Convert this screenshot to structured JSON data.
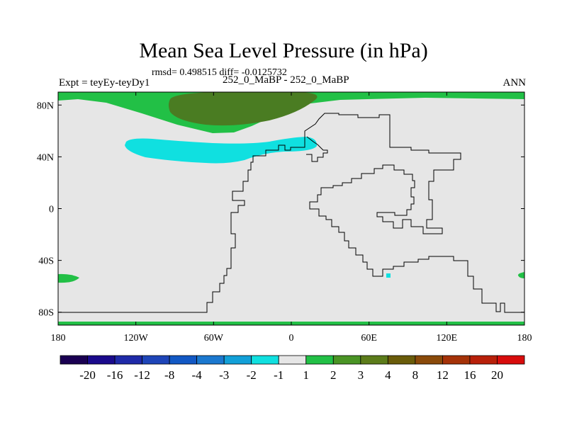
{
  "chart_data": {
    "type": "map-contour",
    "title": "Mean Sea Level Pressure (in hPa)",
    "stats": "rmsd= 0.498515 diff= -0.0125732",
    "left_label": "Expt = teyEy-teyDy1",
    "center_label": "252_0_MaBP - 252_0_MaBP",
    "right_label": "ANN",
    "lon_range": [
      -180,
      180
    ],
    "lat_range": [
      -90,
      90
    ],
    "lon_ticks": [
      {
        "value": -180,
        "label": "180"
      },
      {
        "value": -120,
        "label": "120W"
      },
      {
        "value": -60,
        "label": "60W"
      },
      {
        "value": 0,
        "label": "0"
      },
      {
        "value": 60,
        "label": "60E"
      },
      {
        "value": 120,
        "label": "120E"
      },
      {
        "value": 180,
        "label": "180"
      }
    ],
    "lat_ticks": [
      {
        "value": 80,
        "label": "80N"
      },
      {
        "value": 40,
        "label": "40N"
      },
      {
        "value": 0,
        "label": "0"
      },
      {
        "value": -40,
        "label": "40S"
      },
      {
        "value": -80,
        "label": "80S"
      }
    ],
    "colorbar": {
      "colors": [
        "#1a0052",
        "#1a0a8c",
        "#1f2aa8",
        "#1e45b8",
        "#1258c4",
        "#1b78cf",
        "#12a0d8",
        "#10e0e0",
        "#e6e6e6",
        "#22c046",
        "#4a9424",
        "#5c7c1a",
        "#6a5c0a",
        "#8a4a0a",
        "#a53208",
        "#b8200a",
        "#d80c0c"
      ],
      "labels": [
        "-20",
        "-16",
        "-12",
        "-8",
        "-4",
        "-3",
        "-2",
        "-1",
        "1",
        "2",
        "3",
        "4",
        "8",
        "12",
        "16",
        "20"
      ]
    }
  }
}
